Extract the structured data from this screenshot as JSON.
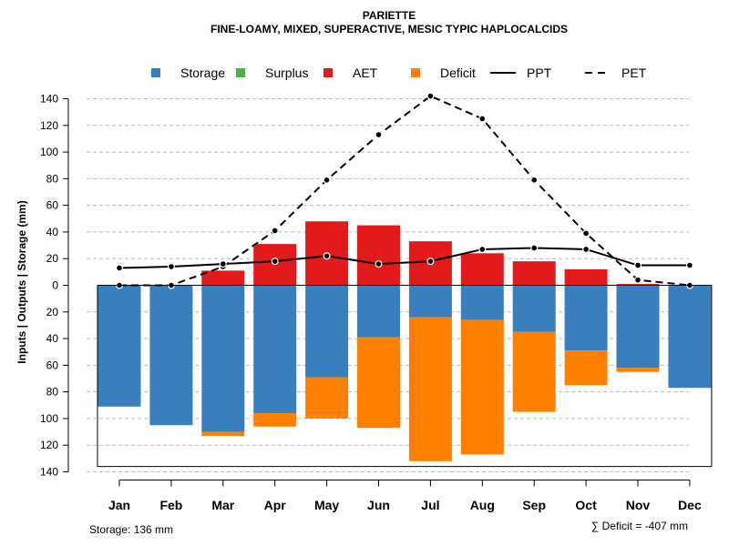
{
  "chart_data": {
    "type": "bar",
    "title": "PARIETTE",
    "subtitle": "FINE-LOAMY, MIXED, SUPERACTIVE, MESIC TYPIC HAPLOCALCIDS",
    "ylabel": "Inputs | Outputs | Storage   (mm)",
    "categories": [
      "Jan",
      "Feb",
      "Mar",
      "Apr",
      "May",
      "Jun",
      "Jul",
      "Aug",
      "Sep",
      "Oct",
      "Nov",
      "Dec"
    ],
    "ylim": [
      -140,
      140
    ],
    "yticks": [
      140,
      120,
      100,
      80,
      60,
      40,
      20,
      0,
      20,
      40,
      60,
      80,
      100,
      120,
      140
    ],
    "grid": true,
    "legend": {
      "position": "top",
      "entries": [
        {
          "label": "Storage",
          "kind": "square",
          "color": "#3A7FBD"
        },
        {
          "label": "Surplus",
          "kind": "square",
          "color": "#4DAF4A"
        },
        {
          "label": "AET",
          "kind": "square",
          "color": "#E31A1C"
        },
        {
          "label": "Deficit",
          "kind": "square",
          "color": "#FF7F00"
        },
        {
          "label": "PPT",
          "kind": "solid-line",
          "color": "#000000"
        },
        {
          "label": "PET",
          "kind": "dashed-line",
          "color": "#000000"
        }
      ]
    },
    "series": [
      {
        "name": "AET",
        "color": "#E31A1C",
        "values": [
          0,
          0,
          11,
          31,
          48,
          45,
          33,
          24,
          18,
          12,
          1,
          0
        ]
      },
      {
        "name": "Storage",
        "color": "#3A7FBD",
        "values": [
          91,
          105,
          110,
          96,
          69,
          39,
          24,
          26,
          35,
          49,
          62,
          77
        ]
      },
      {
        "name": "Deficit",
        "color": "#FF7F00",
        "values": [
          0,
          0,
          3,
          10,
          31,
          68,
          108,
          101,
          60,
          26,
          3,
          0
        ]
      },
      {
        "name": "Surplus",
        "color": "#4DAF4A",
        "values": [
          0,
          0,
          0,
          0,
          0,
          0,
          0,
          0,
          0,
          0,
          0,
          0
        ]
      },
      {
        "name": "PPT",
        "color": "#000000",
        "values": [
          13,
          14,
          16,
          18,
          22,
          16,
          18,
          27,
          28,
          27,
          15,
          15
        ]
      },
      {
        "name": "PET",
        "color": "#000000",
        "values": [
          0,
          0,
          14,
          41,
          79,
          113,
          142,
          125,
          79,
          39,
          4,
          0
        ]
      }
    ],
    "storage_capacity": 136,
    "notes": {
      "storage": "Storage: 136 mm",
      "deficit": "∑ Deficit = -407 mm"
    }
  }
}
